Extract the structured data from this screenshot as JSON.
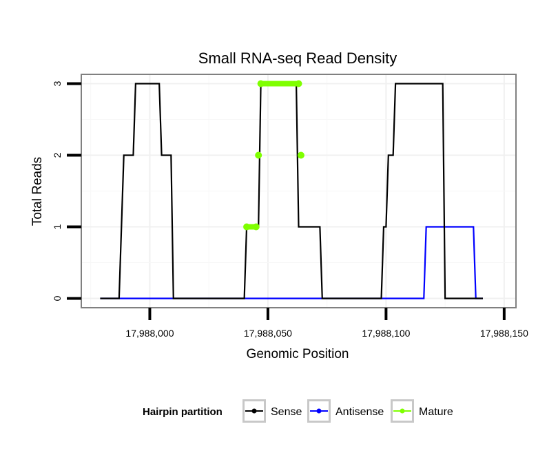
{
  "chart_data": {
    "type": "line",
    "title": "Small RNA-seq Read Density",
    "xlabel": "Genomic Position",
    "ylabel": "Total Reads",
    "xlim": [
      17987971,
      17988155
    ],
    "ylim": [
      -0.13,
      3.13
    ],
    "x_ticks": [
      17988000,
      17988050,
      17988100,
      17988150
    ],
    "x_tick_labels": [
      "17,988,000",
      "17,988,050",
      "17,988,100",
      "17,988,150"
    ],
    "y_ticks": [
      0,
      1,
      2,
      3
    ],
    "y_tick_labels": [
      "0",
      "1",
      "2",
      "3"
    ],
    "grid": true,
    "legend": {
      "title": "Hairpin partition",
      "position": "bottom",
      "entries": [
        {
          "name": "Sense",
          "color": "#000000"
        },
        {
          "name": "Antisense",
          "color": "#0000ff"
        },
        {
          "name": "Mature",
          "color": "#7fff00"
        }
      ]
    },
    "series": [
      {
        "name": "Sense",
        "color": "#000000",
        "points": [
          [
            17987979,
            0
          ],
          [
            17987987,
            0
          ],
          [
            17987989,
            2
          ],
          [
            17987993,
            2
          ],
          [
            17987994,
            3
          ],
          [
            17988004,
            3
          ],
          [
            17988005,
            2
          ],
          [
            17988009,
            2
          ],
          [
            17988010,
            0
          ],
          [
            17988040,
            0
          ],
          [
            17988041,
            1
          ],
          [
            17988046,
            1
          ],
          [
            17988047,
            3
          ],
          [
            17988062,
            3
          ],
          [
            17988063,
            1
          ],
          [
            17988072,
            1
          ],
          [
            17988073,
            0
          ],
          [
            17988098,
            0
          ],
          [
            17988099,
            1
          ],
          [
            17988100,
            1
          ],
          [
            17988101,
            2
          ],
          [
            17988103,
            2
          ],
          [
            17988104,
            3
          ],
          [
            17988124,
            3
          ],
          [
            17988125,
            0
          ],
          [
            17988141,
            0
          ]
        ]
      },
      {
        "name": "Antisense",
        "color": "#0000ff",
        "points": [
          [
            17987979,
            0
          ],
          [
            17988116,
            0
          ],
          [
            17988117,
            1
          ],
          [
            17988137,
            1
          ],
          [
            17988138,
            0
          ],
          [
            17988141,
            0
          ]
        ]
      },
      {
        "name": "Mature",
        "color": "#7fff00",
        "points": [
          [
            17988041,
            1
          ],
          [
            17988045,
            1
          ],
          [
            17988046,
            2
          ],
          [
            17988047,
            3
          ],
          [
            17988063,
            3
          ],
          [
            17988064,
            2
          ]
        ],
        "segments": [
          [
            0,
            1
          ],
          [
            3,
            4
          ]
        ]
      }
    ]
  }
}
